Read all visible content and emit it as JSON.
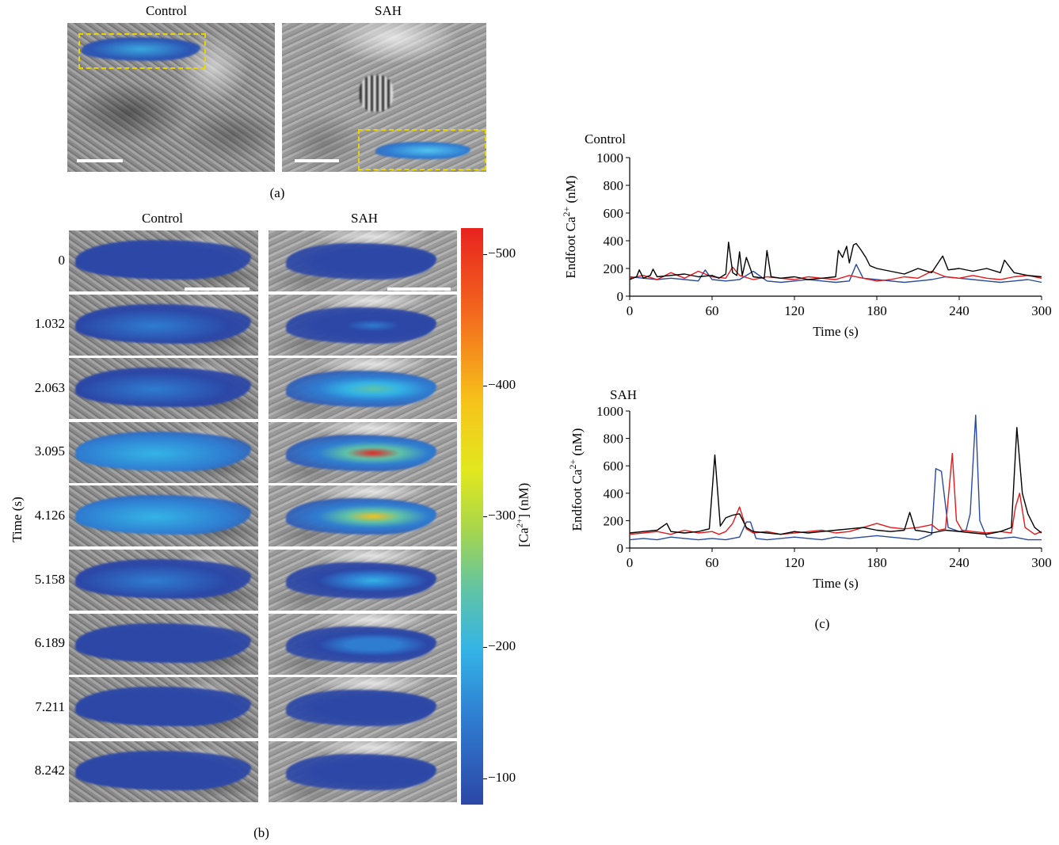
{
  "panel_a": {
    "title_control": "Control",
    "title_sah": "SAH",
    "caption": "(a)"
  },
  "panel_b": {
    "title_control": "Control",
    "title_sah": "SAH",
    "y_axis_label": "Time (s)",
    "times": [
      "0",
      "1.032",
      "2.063",
      "3.095",
      "4.126",
      "5.158",
      "6.189",
      "7.211",
      "8.242"
    ],
    "control_intensity": [
      0.2,
      0.3,
      0.45,
      0.55,
      0.5,
      0.35,
      0.25,
      0.18,
      0.15
    ],
    "sah_intensity": [
      0.2,
      0.35,
      0.7,
      1.0,
      0.95,
      0.6,
      0.45,
      0.25,
      0.15
    ],
    "colorbar_label": "[Ca2+] (nM)",
    "colorbar_ticks": [
      "−500",
      "−400",
      "−300",
      "−200",
      "−100"
    ],
    "colorbar_values": [
      500,
      400,
      300,
      200,
      100
    ],
    "caption": "(b)"
  },
  "panel_c": {
    "caption": "(c)",
    "colors": {
      "black": "#000000",
      "red": "#e3191c",
      "blue": "#2a4a9e"
    }
  },
  "chart_data": [
    {
      "type": "line",
      "title": "Control",
      "xlabel": "Time (s)",
      "ylabel": "Endfoot Ca2+ (nM)",
      "xlim": [
        0,
        300
      ],
      "ylim": [
        0,
        1000
      ],
      "xticks": [
        0,
        60,
        120,
        180,
        240,
        300
      ],
      "yticks": [
        0,
        200,
        400,
        600,
        800,
        1000
      ],
      "series": [
        {
          "color": "#000000",
          "x": [
            0,
            5,
            7,
            10,
            15,
            17,
            20,
            30,
            40,
            50,
            60,
            65,
            70,
            72,
            75,
            78,
            80,
            82,
            85,
            90,
            98,
            100,
            103,
            110,
            120,
            130,
            140,
            150,
            152,
            155,
            158,
            160,
            163,
            165,
            168,
            172,
            175,
            180,
            190,
            200,
            210,
            220,
            228,
            232,
            240,
            250,
            260,
            270,
            273,
            280,
            290,
            300
          ],
          "y": [
            120,
            140,
            190,
            130,
            150,
            195,
            140,
            150,
            160,
            140,
            150,
            130,
            160,
            390,
            170,
            150,
            320,
            150,
            280,
            140,
            130,
            330,
            140,
            130,
            140,
            120,
            130,
            140,
            330,
            280,
            360,
            240,
            370,
            380,
            340,
            280,
            220,
            200,
            180,
            160,
            200,
            170,
            290,
            190,
            200,
            180,
            200,
            170,
            260,
            170,
            150,
            140
          ]
        },
        {
          "color": "#e3191c",
          "x": [
            0,
            10,
            20,
            30,
            40,
            50,
            60,
            70,
            75,
            80,
            90,
            100,
            110,
            120,
            130,
            140,
            150,
            160,
            170,
            180,
            190,
            200,
            210,
            220,
            230,
            240,
            250,
            260,
            270,
            280,
            290,
            300
          ],
          "y": [
            130,
            150,
            120,
            170,
            130,
            180,
            140,
            130,
            210,
            150,
            120,
            140,
            130,
            120,
            140,
            130,
            120,
            150,
            130,
            110,
            120,
            140,
            130,
            180,
            140,
            130,
            150,
            130,
            120,
            140,
            150,
            130
          ]
        },
        {
          "color": "#2a4a9e",
          "x": [
            0,
            10,
            20,
            30,
            40,
            50,
            55,
            60,
            70,
            80,
            90,
            100,
            110,
            120,
            130,
            140,
            150,
            160,
            165,
            170,
            180,
            190,
            200,
            210,
            220,
            230,
            240,
            250,
            260,
            270,
            280,
            290,
            300
          ],
          "y": [
            140,
            130,
            120,
            130,
            120,
            110,
            190,
            120,
            110,
            120,
            180,
            110,
            100,
            110,
            120,
            110,
            100,
            110,
            230,
            130,
            120,
            110,
            100,
            110,
            120,
            140,
            130,
            120,
            110,
            100,
            110,
            120,
            100
          ]
        }
      ]
    },
    {
      "type": "line",
      "title": "SAH",
      "xlabel": "Time (s)",
      "ylabel": "Endfoot Ca2+ (nM)",
      "xlim": [
        0,
        300
      ],
      "ylim": [
        0,
        1000
      ],
      "xticks": [
        0,
        60,
        120,
        180,
        240,
        300
      ],
      "yticks": [
        0,
        200,
        400,
        600,
        800,
        1000
      ],
      "series": [
        {
          "color": "#000000",
          "x": [
            0,
            10,
            20,
            27,
            30,
            40,
            50,
            58,
            62,
            66,
            70,
            75,
            80,
            85,
            90,
            100,
            110,
            120,
            130,
            140,
            150,
            160,
            170,
            180,
            190,
            200,
            204,
            208,
            215,
            220,
            230,
            240,
            250,
            260,
            270,
            278,
            282,
            286,
            290,
            295,
            300
          ],
          "y": [
            110,
            120,
            130,
            180,
            120,
            110,
            120,
            140,
            680,
            160,
            220,
            240,
            250,
            150,
            120,
            110,
            100,
            120,
            110,
            120,
            130,
            140,
            150,
            130,
            120,
            130,
            260,
            130,
            120,
            110,
            130,
            120,
            110,
            100,
            120,
            150,
            880,
            400,
            250,
            150,
            110
          ]
        },
        {
          "color": "#e3191c",
          "x": [
            0,
            10,
            20,
            30,
            40,
            50,
            60,
            65,
            70,
            75,
            80,
            85,
            90,
            100,
            110,
            120,
            130,
            140,
            150,
            160,
            170,
            180,
            190,
            200,
            210,
            220,
            225,
            230,
            235,
            238,
            242,
            250,
            260,
            270,
            278,
            281,
            284,
            288,
            295,
            300
          ],
          "y": [
            100,
            110,
            120,
            100,
            130,
            110,
            120,
            100,
            120,
            180,
            300,
            140,
            110,
            120,
            100,
            110,
            120,
            130,
            110,
            120,
            150,
            180,
            150,
            140,
            150,
            170,
            130,
            140,
            690,
            200,
            130,
            120,
            110,
            120,
            110,
            300,
            400,
            150,
            100,
            120
          ]
        },
        {
          "color": "#2a4a9e",
          "x": [
            0,
            10,
            20,
            30,
            40,
            50,
            60,
            70,
            80,
            85,
            88,
            92,
            100,
            110,
            120,
            130,
            140,
            150,
            160,
            170,
            180,
            190,
            200,
            210,
            215,
            220,
            223,
            227,
            232,
            240,
            245,
            248,
            252,
            255,
            260,
            270,
            280,
            290,
            300
          ],
          "y": [
            60,
            70,
            60,
            80,
            70,
            60,
            70,
            60,
            80,
            190,
            190,
            70,
            60,
            70,
            80,
            70,
            60,
            80,
            70,
            80,
            90,
            80,
            70,
            60,
            80,
            100,
            580,
            560,
            150,
            120,
            130,
            250,
            970,
            200,
            80,
            70,
            80,
            60,
            60
          ]
        }
      ]
    }
  ]
}
